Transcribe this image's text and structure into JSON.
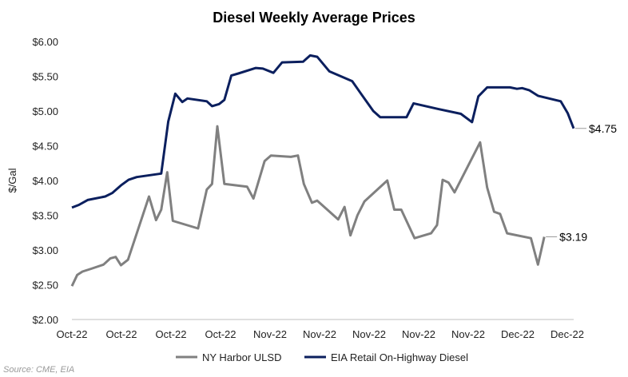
{
  "chart_data": {
    "type": "line",
    "title": "Diesel Weekly Average Prices",
    "ylabel": "$/Gal",
    "xlabel": "",
    "ylim": [
      2.0,
      6.0
    ],
    "y_ticks": [
      "$2.00",
      "$2.50",
      "$3.00",
      "$3.50",
      "$4.00",
      "$4.50",
      "$5.00",
      "$5.50",
      "$6.00"
    ],
    "x_tick_labels": [
      "Oct-22",
      "Oct-22",
      "Oct-22",
      "Oct-22",
      "Nov-22",
      "Nov-22",
      "Nov-22",
      "Nov-22",
      "Nov-22",
      "Dec-22",
      "Dec-22"
    ],
    "grid": false,
    "legend": "bottom",
    "series": [
      {
        "name": "NY Harbor ULSD",
        "color": "#808080",
        "end_label": "$3.19",
        "points": [
          [
            0.0,
            2.48
          ],
          [
            0.15,
            2.64
          ],
          [
            0.3,
            2.69
          ],
          [
            0.55,
            2.73
          ],
          [
            0.9,
            2.79
          ],
          [
            1.1,
            2.88
          ],
          [
            1.25,
            2.9
          ],
          [
            1.4,
            2.78
          ],
          [
            1.6,
            2.86
          ],
          [
            2.2,
            3.77
          ],
          [
            2.4,
            3.43
          ],
          [
            2.55,
            3.58
          ],
          [
            2.72,
            4.12
          ],
          [
            2.88,
            3.42
          ],
          [
            3.6,
            3.31
          ],
          [
            3.85,
            3.87
          ],
          [
            4.0,
            3.95
          ],
          [
            4.15,
            4.78
          ],
          [
            4.35,
            3.95
          ],
          [
            5.0,
            3.91
          ],
          [
            5.18,
            3.74
          ],
          [
            5.5,
            4.28
          ],
          [
            5.68,
            4.36
          ],
          [
            6.25,
            4.34
          ],
          [
            6.45,
            4.36
          ],
          [
            6.62,
            3.95
          ],
          [
            6.85,
            3.68
          ],
          [
            7.0,
            3.71
          ],
          [
            7.6,
            3.44
          ],
          [
            7.78,
            3.62
          ],
          [
            7.95,
            3.21
          ],
          [
            8.15,
            3.5
          ],
          [
            8.35,
            3.7
          ],
          [
            9.0,
            4.0
          ],
          [
            9.2,
            3.58
          ],
          [
            9.4,
            3.58
          ],
          [
            9.78,
            3.17
          ],
          [
            10.25,
            3.24
          ],
          [
            10.42,
            3.36
          ],
          [
            10.58,
            4.01
          ],
          [
            10.75,
            3.97
          ],
          [
            10.92,
            3.83
          ],
          [
            11.65,
            4.55
          ],
          [
            11.85,
            3.9
          ],
          [
            12.05,
            3.55
          ],
          [
            12.22,
            3.52
          ],
          [
            12.42,
            3.24
          ],
          [
            13.1,
            3.17
          ],
          [
            13.3,
            2.79
          ],
          [
            13.48,
            3.19
          ]
        ]
      },
      {
        "name": "EIA Retail On-Highway Diesel",
        "color": "#0b1f5e",
        "end_label": "$4.75",
        "points": [
          [
            0.0,
            3.61
          ],
          [
            0.2,
            3.65
          ],
          [
            0.45,
            3.72
          ],
          [
            0.95,
            3.77
          ],
          [
            1.15,
            3.82
          ],
          [
            1.4,
            3.93
          ],
          [
            1.62,
            4.01
          ],
          [
            1.85,
            4.05
          ],
          [
            2.55,
            4.1
          ],
          [
            2.75,
            4.85
          ],
          [
            2.95,
            5.25
          ],
          [
            3.15,
            5.13
          ],
          [
            3.3,
            5.18
          ],
          [
            3.85,
            5.14
          ],
          [
            4.0,
            5.07
          ],
          [
            4.2,
            5.1
          ],
          [
            4.35,
            5.16
          ],
          [
            4.55,
            5.51
          ],
          [
            4.75,
            5.54
          ],
          [
            5.25,
            5.62
          ],
          [
            5.45,
            5.61
          ],
          [
            5.75,
            5.55
          ],
          [
            6.0,
            5.7
          ],
          [
            6.6,
            5.71
          ],
          [
            6.8,
            5.8
          ],
          [
            7.0,
            5.78
          ],
          [
            7.35,
            5.57
          ],
          [
            8.0,
            5.43
          ],
          [
            8.25,
            5.25
          ],
          [
            8.6,
            5.0
          ],
          [
            8.8,
            4.91
          ],
          [
            9.55,
            4.91
          ],
          [
            9.75,
            5.11
          ],
          [
            10.45,
            5.03
          ],
          [
            11.1,
            4.96
          ],
          [
            11.42,
            4.84
          ],
          [
            11.6,
            5.21
          ],
          [
            11.85,
            5.34
          ],
          [
            12.5,
            5.34
          ],
          [
            12.7,
            5.32
          ],
          [
            12.85,
            5.33
          ],
          [
            13.05,
            5.3
          ],
          [
            13.3,
            5.22
          ],
          [
            13.95,
            5.14
          ],
          [
            14.15,
            4.97
          ],
          [
            14.32,
            4.75
          ]
        ]
      }
    ]
  },
  "source": "Source: CME, EIA"
}
